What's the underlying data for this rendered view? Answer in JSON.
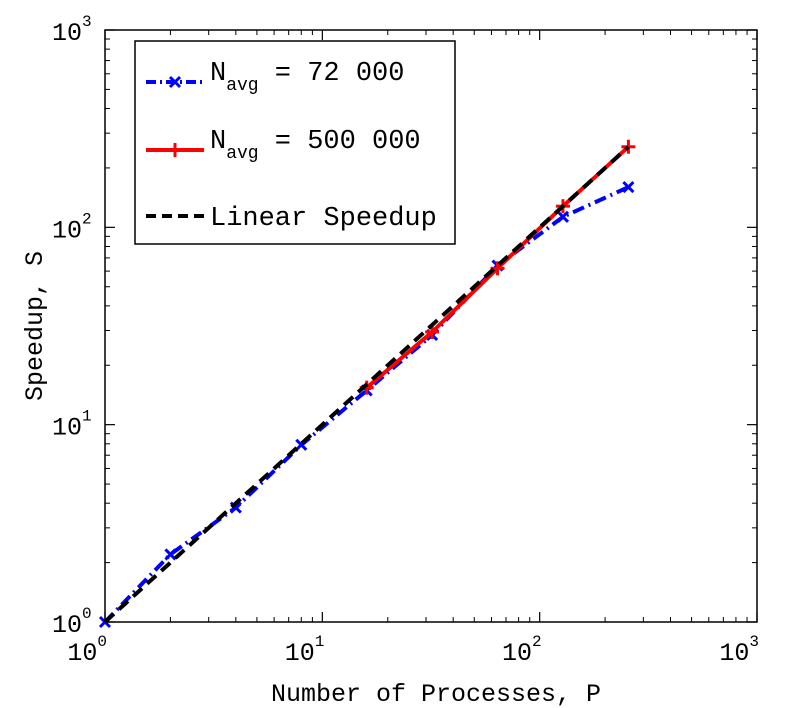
{
  "chart_data": {
    "type": "line",
    "xscale": "log",
    "yscale": "log",
    "xlim": [
      1,
      1000
    ],
    "ylim": [
      1,
      1000
    ],
    "xlabel": "Number of Processes, P",
    "ylabel": "Speedup, S",
    "x_ticks": [
      {
        "value": 1,
        "base": "10",
        "exp": "0"
      },
      {
        "value": 10,
        "base": "10",
        "exp": "1"
      },
      {
        "value": 100,
        "base": "10",
        "exp": "2"
      },
      {
        "value": 1000,
        "base": "10",
        "exp": "3"
      }
    ],
    "y_ticks": [
      {
        "value": 1,
        "base": "10",
        "exp": "0"
      },
      {
        "value": 10,
        "base": "10",
        "exp": "1"
      },
      {
        "value": 100,
        "base": "10",
        "exp": "2"
      },
      {
        "value": 1000,
        "base": "10",
        "exp": "3"
      }
    ],
    "grid": false,
    "legend_position": "top-left",
    "series": [
      {
        "name_main": "N",
        "name_sub": "avg",
        "name_rest": " = 72 000",
        "color": "#0000ff",
        "line_style": "dash-dot",
        "marker": "x",
        "x": [
          1,
          2,
          4,
          8,
          16,
          32,
          64,
          128,
          256
        ],
        "y": [
          1,
          2.2,
          3.8,
          7.9,
          14.9,
          28.5,
          64,
          113,
          160
        ]
      },
      {
        "name_main": "N",
        "name_sub": "avg",
        "name_rest": " = 500 000",
        "color": "#ff0000",
        "line_style": "solid",
        "marker": "+",
        "x": [
          16,
          32,
          64,
          128,
          256
        ],
        "y": [
          15.4,
          29.5,
          62,
          128,
          256
        ]
      },
      {
        "name": "Linear Speedup",
        "color": "#000000",
        "line_style": "dashed",
        "marker": "none",
        "x": [
          1,
          256
        ],
        "y": [
          1,
          256
        ]
      }
    ]
  }
}
